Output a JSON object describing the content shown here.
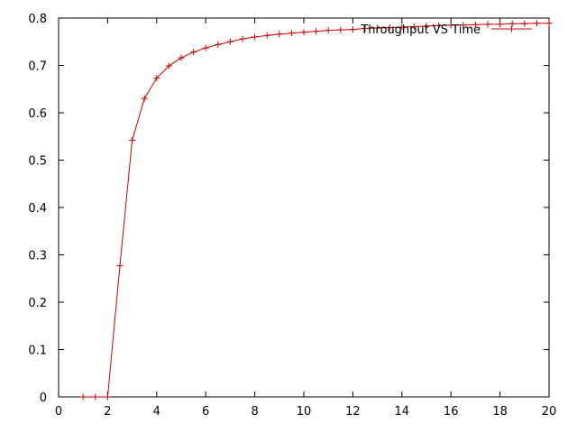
{
  "chart_data": {
    "type": "line",
    "title": "",
    "xlabel": "",
    "ylabel": "",
    "xlim": [
      0,
      20
    ],
    "ylim": [
      0,
      0.8
    ],
    "x_ticks": [
      "0",
      "2",
      "4",
      "6",
      "8",
      "10",
      "12",
      "14",
      "16",
      "18",
      "20"
    ],
    "y_ticks": [
      "0",
      "0.1",
      "0.2",
      "0.3",
      "0.4",
      "0.5",
      "0.6",
      "0.7",
      "0.8"
    ],
    "grid": false,
    "legend_position": "top-right",
    "series": [
      {
        "name": "Throughput VS Time",
        "color": "#cc0000",
        "marker": "plus",
        "x": [
          1,
          1.5,
          2,
          2.5,
          3,
          3.5,
          4,
          4.5,
          5,
          5.5,
          6,
          6.5,
          7,
          7.5,
          8,
          8.5,
          9,
          9.5,
          10,
          10.5,
          11,
          11.5,
          12,
          12.5,
          13,
          13.5,
          14,
          14.5,
          15,
          15.5,
          16,
          16.5,
          17,
          17.5,
          18,
          18.5,
          19,
          19.5,
          20
        ],
        "y": [
          0,
          0,
          0,
          0.277,
          0.542,
          0.63,
          0.673,
          0.699,
          0.716,
          0.728,
          0.737,
          0.744,
          0.75,
          0.756,
          0.76,
          0.763,
          0.766,
          0.768,
          0.77,
          0.772,
          0.774,
          0.775,
          0.776,
          0.778,
          0.779,
          0.78,
          0.781,
          0.782,
          0.783,
          0.784,
          0.785,
          0.785,
          0.786,
          0.787,
          0.787,
          0.788,
          0.788,
          0.789,
          0.789
        ]
      }
    ]
  }
}
